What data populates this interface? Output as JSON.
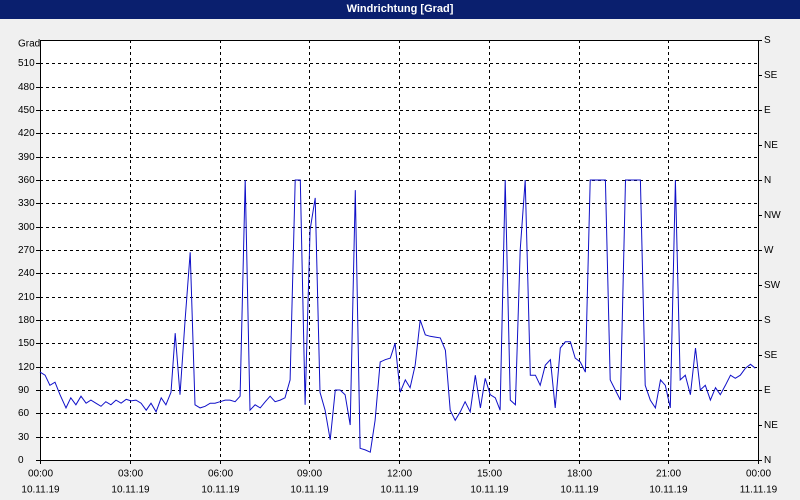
{
  "chart_data": {
    "type": "line",
    "title": "Windrichtung [Grad]",
    "ylabel": "Grad",
    "color": "#1010c8",
    "grid": true,
    "ylim": [
      0,
      540
    ],
    "yticks": [
      0,
      30,
      60,
      90,
      120,
      150,
      180,
      210,
      240,
      270,
      300,
      330,
      360,
      390,
      420,
      450,
      480,
      510
    ],
    "y2lim": [
      0,
      540
    ],
    "y2ticks": [
      {
        "value": 0,
        "label": "N"
      },
      {
        "value": 45,
        "label": "NE"
      },
      {
        "value": 90,
        "label": "E"
      },
      {
        "value": 135,
        "label": "SE"
      },
      {
        "value": 180,
        "label": "S"
      },
      {
        "value": 225,
        "label": "SW"
      },
      {
        "value": 270,
        "label": "W"
      },
      {
        "value": 315,
        "label": "NW"
      },
      {
        "value": 360,
        "label": "N"
      },
      {
        "value": 405,
        "label": "NE"
      },
      {
        "value": 450,
        "label": "E"
      },
      {
        "value": 495,
        "label": "SE"
      },
      {
        "value": 540,
        "label": "S"
      }
    ],
    "xlim": [
      0,
      24
    ],
    "xticks": [
      {
        "value": 0,
        "label": "00:00"
      },
      {
        "value": 3,
        "label": "03:00"
      },
      {
        "value": 6,
        "label": "06:00"
      },
      {
        "value": 9,
        "label": "09:00"
      },
      {
        "value": 12,
        "label": "12:00"
      },
      {
        "value": 15,
        "label": "15:00"
      },
      {
        "value": 18,
        "label": "18:00"
      },
      {
        "value": 21,
        "label": "21:00"
      },
      {
        "value": 24,
        "label": "00:00"
      }
    ],
    "xtick_dates": [
      "10.11.19",
      "10.11.19",
      "10.11.19",
      "10.11.19",
      "10.11.19",
      "10.11.19",
      "10.11.19",
      "10.11.19",
      "11.11.19"
    ],
    "x": [
      0,
      0.17,
      0.33,
      0.5,
      0.67,
      0.87,
      1.03,
      1.2,
      1.37,
      1.54,
      1.7,
      1.87,
      2.04,
      2.2,
      2.37,
      2.54,
      2.71,
      2.88,
      3.04,
      3.21,
      3.38,
      3.55,
      3.71,
      3.88,
      4.05,
      4.21,
      4.38,
      4.52,
      4.68,
      4.85,
      5.02,
      5.18,
      5.35,
      5.52,
      5.69,
      5.85,
      6.02,
      6.19,
      6.35,
      6.52,
      6.69,
      6.86,
      7.02,
      7.19,
      7.36,
      7.53,
      7.69,
      7.86,
      8.03,
      8.19,
      8.36,
      8.53,
      8.7,
      8.86,
      9.03,
      9.2,
      9.36,
      9.53,
      9.7,
      9.87,
      10.03,
      10.2,
      10.37,
      10.54,
      10.7,
      10.87,
      11.04,
      11.2,
      11.37,
      11.54,
      11.71,
      11.87,
      12.04,
      12.21,
      12.37,
      12.54,
      12.71,
      12.88,
      13.04,
      13.21,
      13.38,
      13.55,
      13.71,
      13.88,
      14.05,
      14.21,
      14.38,
      14.55,
      14.72,
      14.88,
      15.05,
      15.22,
      15.38,
      15.55,
      15.72,
      15.89,
      16.05,
      16.22,
      16.39,
      16.56,
      16.72,
      16.89,
      17.06,
      17.22,
      17.39,
      17.56,
      17.73,
      17.89,
      18.06,
      18.23,
      18.39,
      18.56,
      18.73,
      18.9,
      19.06,
      19.23,
      19.4,
      19.57,
      19.73,
      19.9,
      20.07,
      20.23,
      20.4,
      20.57,
      20.74,
      20.9,
      21.07,
      21.24,
      21.4,
      21.57,
      21.74,
      21.91,
      22.07,
      22.24,
      22.41,
      22.58,
      22.74,
      22.91,
      23.08,
      23.24,
      23.41,
      23.58,
      23.75,
      23.91
    ],
    "values": [
      113,
      109,
      96,
      100,
      84,
      67,
      80,
      71,
      82,
      73,
      77,
      73,
      69,
      75,
      71,
      77,
      73,
      78,
      76,
      77,
      73,
      64,
      73,
      62,
      80,
      71,
      87,
      163,
      84,
      180,
      267,
      71,
      67,
      69,
      73,
      73,
      75,
      77,
      77,
      75,
      82,
      360,
      64,
      71,
      67,
      75,
      82,
      75,
      77,
      80,
      103,
      360,
      360,
      71,
      296,
      337,
      87,
      64,
      26,
      90,
      90,
      84,
      45,
      347,
      15,
      13,
      10,
      51,
      126,
      129,
      131,
      150,
      87,
      103,
      93,
      122,
      180,
      161,
      159,
      158,
      157,
      141,
      64,
      51,
      62,
      75,
      62,
      109,
      67,
      105,
      84,
      80,
      64,
      360,
      77,
      71,
      270,
      360,
      109,
      109,
      96,
      122,
      129,
      67,
      144,
      152,
      152,
      131,
      126,
      113,
      360,
      360,
      360,
      360,
      103,
      90,
      77,
      360,
      360,
      360,
      360,
      96,
      77,
      67,
      103,
      96,
      67,
      360,
      103,
      109,
      84,
      144,
      90,
      96,
      77,
      93,
      84,
      96,
      109,
      105,
      109,
      118,
      123,
      118
    ]
  }
}
